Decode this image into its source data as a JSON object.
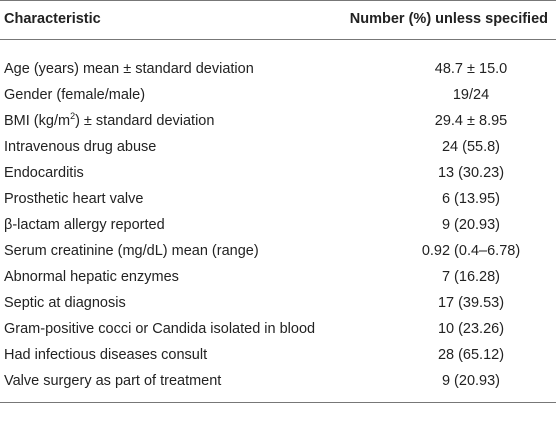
{
  "table": {
    "header": [
      "Characteristic",
      "Number (%) unless specified"
    ],
    "rows": [
      [
        "Age (years) mean ± standard deviation",
        "48.7 ± 15.0"
      ],
      [
        "Gender (female/male)",
        "19/24"
      ],
      [
        {
          "text": "BMI (kg/m",
          "sup": "2",
          "rest": ") ± standard deviation"
        },
        "29.4 ± 8.95"
      ],
      [
        "Intravenous drug abuse",
        "24 (55.8)"
      ],
      [
        "Endocarditis",
        "13 (30.23)"
      ],
      [
        "Prosthetic heart valve",
        "6 (13.95)"
      ],
      [
        "β-lactam allergy reported",
        "9 (20.93)"
      ],
      [
        "Serum creatinine (mg/dL) mean (range)",
        "0.92 (0.4–6.78)"
      ],
      [
        "Abnormal hepatic enzymes",
        "7 (16.28)"
      ],
      [
        "Septic at diagnosis",
        "17 (39.53)"
      ],
      [
        "Gram-positive cocci or Candida isolated in blood",
        "10 (23.26)"
      ],
      [
        "Had infectious diseases consult",
        "28 (65.12)"
      ],
      [
        "Valve surgery as part of treatment",
        "9 (20.93)"
      ]
    ]
  }
}
